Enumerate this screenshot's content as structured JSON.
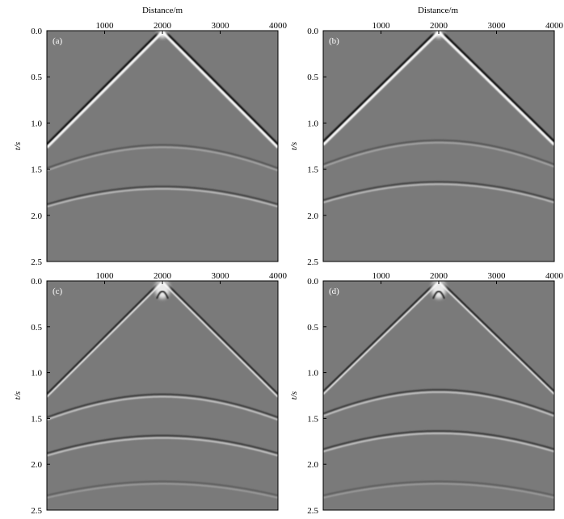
{
  "figure": {
    "top_axis_title": "Distance/m",
    "left_axis_title": "t/s"
  },
  "chart_data": [
    {
      "type": "heatmap",
      "panel_label": "(a)",
      "x_ticks": [
        "1000",
        "2000",
        "3000",
        "4000"
      ],
      "y_ticks": [
        "0.0",
        "0.5",
        "1.0",
        "1.5",
        "2.0",
        "2.5"
      ],
      "xlim": [
        0,
        4000
      ],
      "ylim": [
        0,
        2.5
      ],
      "xlabel": "Distance/m",
      "ylabel": "t/s",
      "source_x": 2000,
      "direct_wave_edge_time": 1.25,
      "reflection_apex_times": [
        1.25,
        1.7
      ],
      "colormap": "gray"
    },
    {
      "type": "heatmap",
      "panel_label": "(b)",
      "x_ticks": [
        "1000",
        "2000",
        "3000",
        "4000"
      ],
      "y_ticks": [
        "0.0",
        "0.5",
        "1.0",
        "1.5",
        "2.0",
        "2.5"
      ],
      "xlim": [
        0,
        4000
      ],
      "ylim": [
        0,
        2.5
      ],
      "xlabel": "Distance/m",
      "ylabel": "t/s",
      "source_x": 2000,
      "direct_wave_edge_time": 1.22,
      "reflection_apex_times": [
        1.2,
        1.65
      ],
      "colormap": "gray"
    },
    {
      "type": "heatmap",
      "panel_label": "(c)",
      "x_ticks": [
        "1000",
        "2000",
        "3000",
        "4000"
      ],
      "y_ticks": [
        "0.0",
        "0.5",
        "1.0",
        "1.5",
        "2.0",
        "2.5"
      ],
      "xlim": [
        0,
        4000
      ],
      "ylim": [
        0,
        2.5
      ],
      "xlabel": "",
      "ylabel": "t/s",
      "source_x": 2000,
      "direct_wave_edge_time": 1.25,
      "reflection_apex_times": [
        1.25,
        1.7,
        2.2
      ],
      "colormap": "gray"
    },
    {
      "type": "heatmap",
      "panel_label": "(d)",
      "x_ticks": [
        "1000",
        "2000",
        "3000",
        "4000"
      ],
      "y_ticks": [
        "0.0",
        "0.5",
        "1.0",
        "1.5",
        "2.0",
        "2.5"
      ],
      "xlim": [
        0,
        4000
      ],
      "ylim": [
        0,
        2.5
      ],
      "xlabel": "",
      "ylabel": "t/s",
      "source_x": 2000,
      "direct_wave_edge_time": 1.22,
      "reflection_apex_times": [
        1.2,
        1.65,
        2.2
      ],
      "colormap": "gray"
    }
  ]
}
